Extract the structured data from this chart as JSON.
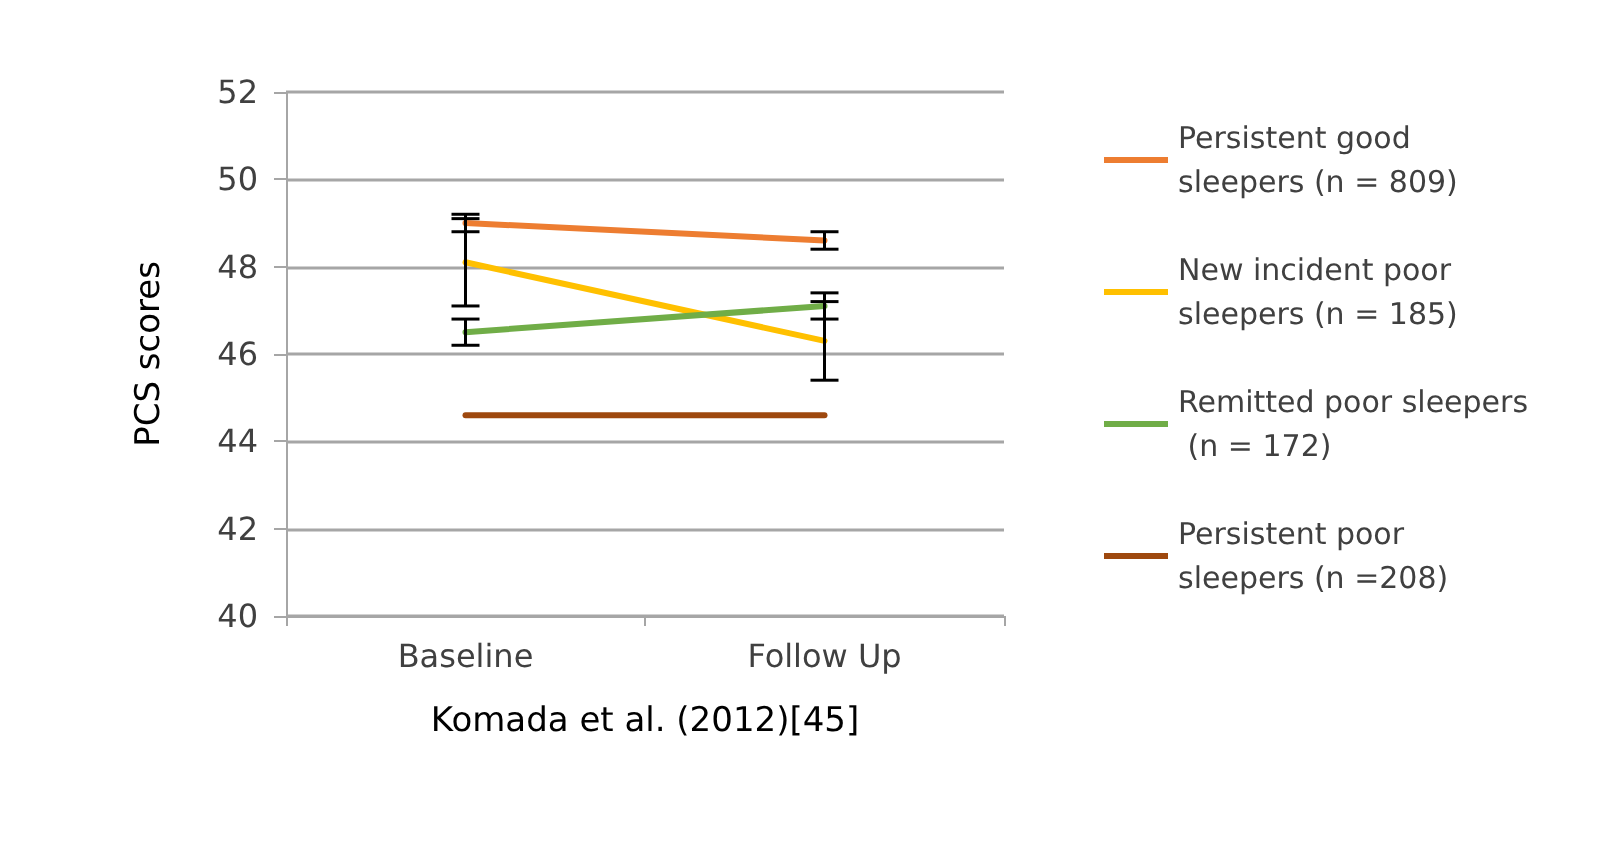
{
  "chart_data": {
    "type": "line",
    "xlabel": "Komada et al. (2012)[45]",
    "ylabel": "PCS scores",
    "categories": [
      "Baseline",
      "Follow Up"
    ],
    "series": [
      {
        "name": "Persistent good sleepers (n = 809)",
        "color": "#ed7d31",
        "values": [
          49.0,
          48.6
        ],
        "errors": [
          0.2,
          0.2
        ]
      },
      {
        "name": "New incident poor sleepers (n = 185)",
        "color": "#ffc000",
        "values": [
          48.1,
          46.3
        ],
        "errors": [
          1.0,
          0.9
        ]
      },
      {
        "name": "Remitted poor sleepers (n = 172)",
        "color": "#70ad47",
        "values": [
          46.5,
          47.1
        ],
        "errors": [
          0.3,
          0.3
        ]
      },
      {
        "name": "Persistent poor sleepers (n =208)",
        "color": "#9e480e",
        "values": [
          44.6,
          44.6
        ],
        "errors": [
          null,
          null
        ]
      }
    ],
    "ylim": [
      40,
      52
    ],
    "yticks": [
      40,
      42,
      44,
      46,
      48,
      50,
      52
    ],
    "grid": "y",
    "legend": "right",
    "marker": "none",
    "line_style": "solid"
  }
}
